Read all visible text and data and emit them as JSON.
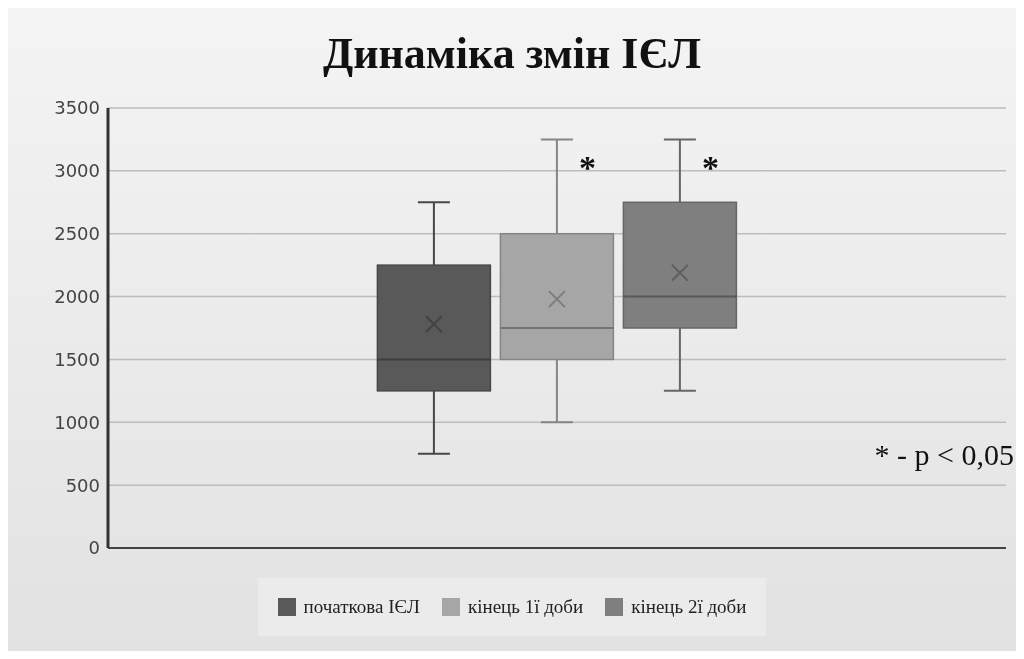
{
  "chart_data": {
    "type": "box",
    "title": "Динаміка змін ІЄЛ",
    "categories": [
      null
    ],
    "series": [
      {
        "name": "початкова ІЄЛ",
        "color": "#595959",
        "boxes": [
          {
            "low": 750,
            "q1": 1250,
            "median": 1500,
            "q3": 2250,
            "high": 2750,
            "mean": 1780
          }
        ]
      },
      {
        "name": "кінець 1ї доби",
        "color": "#a6a6a6",
        "boxes": [
          {
            "low": 1000,
            "q1": 1500,
            "median": 1750,
            "q3": 2500,
            "high": 3250,
            "mean": 1980
          }
        ]
      },
      {
        "name": "кінець 2ї доби",
        "color": "#7f7f7f",
        "boxes": [
          {
            "low": 1250,
            "q1": 1750,
            "median": 2000,
            "q3": 2750,
            "high": 3250,
            "mean": 2190
          }
        ]
      }
    ],
    "ylim": [
      0,
      3500
    ],
    "yticks": [
      0,
      500,
      1000,
      1500,
      2000,
      2500,
      3000,
      3500
    ],
    "grid": "y",
    "legend": "bottom",
    "annotations": [
      "*",
      "*",
      "* - p < 0,05"
    ]
  }
}
